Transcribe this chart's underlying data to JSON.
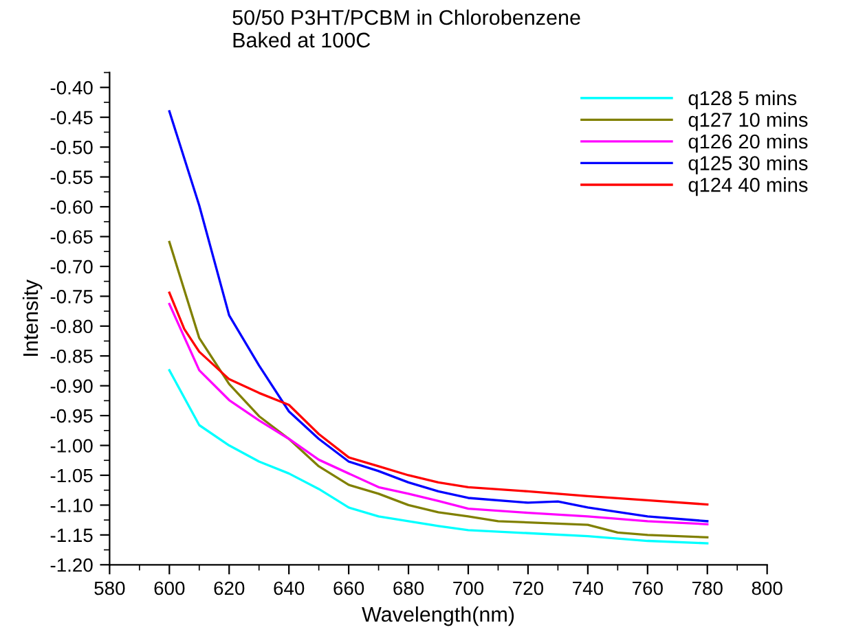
{
  "chart_data": {
    "type": "line",
    "title": "50/50 P3HT/PCBM in Chlorobenzene\nBaked at 100C",
    "xlabel": "Wavelength(nm)",
    "ylabel": "Intensity",
    "xlim": [
      580,
      800
    ],
    "ylim": [
      -1.2,
      -0.375
    ],
    "xticks": [
      580,
      600,
      620,
      640,
      660,
      680,
      700,
      720,
      740,
      760,
      780,
      800
    ],
    "yticks": [
      {
        "value": -1.2,
        "label": "-1.20"
      },
      {
        "value": -1.15,
        "label": "-1.15"
      },
      {
        "value": -1.1,
        "label": "-1.10"
      },
      {
        "value": -1.05,
        "label": "-1.05"
      },
      {
        "value": -1.0,
        "label": "-1.00"
      },
      {
        "value": -0.95,
        "label": "-0.95"
      },
      {
        "value": -0.9,
        "label": "-0.90"
      },
      {
        "value": -0.85,
        "label": "-0.85"
      },
      {
        "value": -0.8,
        "label": "-0.80"
      },
      {
        "value": -0.75,
        "label": "-0.75"
      },
      {
        "value": -0.7,
        "label": "-0.70"
      },
      {
        "value": -0.65,
        "label": "-0.65"
      },
      {
        "value": -0.6,
        "label": "-0.60"
      },
      {
        "value": -0.55,
        "label": "-0.55"
      },
      {
        "value": -0.5,
        "label": "-0.50"
      },
      {
        "value": -0.45,
        "label": "-0.45"
      },
      {
        "value": -0.4,
        "label": "-0.40"
      }
    ],
    "grid": false,
    "legend": "top right",
    "marker": "none",
    "line_style": "solid",
    "series": [
      {
        "name": "q128 5 mins",
        "color": "#00ffff",
        "x": [
          600,
          610,
          620,
          630,
          640,
          650,
          660,
          670,
          680,
          690,
          700,
          720,
          740,
          760,
          780
        ],
        "values": [
          -0.874,
          -0.966,
          -1.0,
          -1.027,
          -1.047,
          -1.073,
          -1.104,
          -1.119,
          -1.127,
          -1.135,
          -1.142,
          -1.147,
          -1.152,
          -1.16,
          -1.164
        ]
      },
      {
        "name": "q127 10 mins",
        "color": "#808000",
        "x": [
          600,
          610,
          620,
          630,
          640,
          650,
          660,
          670,
          680,
          690,
          700,
          710,
          720,
          740,
          750,
          760,
          780
        ],
        "values": [
          -0.659,
          -0.82,
          -0.897,
          -0.951,
          -0.989,
          -1.035,
          -1.066,
          -1.081,
          -1.1,
          -1.112,
          -1.119,
          -1.127,
          -1.129,
          -1.133,
          -1.146,
          -1.15,
          -1.154
        ]
      },
      {
        "name": "q126 20 mins",
        "color": "#ff00ff",
        "x": [
          600,
          610,
          620,
          630,
          640,
          650,
          660,
          670,
          680,
          690,
          700,
          720,
          740,
          760,
          780
        ],
        "values": [
          -0.763,
          -0.874,
          -0.924,
          -0.958,
          -0.989,
          -1.024,
          -1.047,
          -1.07,
          -1.081,
          -1.093,
          -1.106,
          -1.113,
          -1.119,
          -1.127,
          -1.132
        ]
      },
      {
        "name": "q125 30 mins",
        "color": "#0000ff",
        "x": [
          600,
          610,
          620,
          630,
          640,
          650,
          660,
          670,
          680,
          690,
          700,
          720,
          730,
          740,
          760,
          780
        ],
        "values": [
          -0.44,
          -0.598,
          -0.782,
          -0.866,
          -0.943,
          -0.989,
          -1.027,
          -1.043,
          -1.062,
          -1.077,
          -1.088,
          -1.096,
          -1.094,
          -1.104,
          -1.119,
          -1.127
        ]
      },
      {
        "name": "q124 40 mins",
        "color": "#ff0000",
        "x": [
          600,
          605,
          610,
          620,
          630,
          640,
          650,
          660,
          670,
          680,
          690,
          700,
          720,
          740,
          760,
          780
        ],
        "values": [
          -0.744,
          -0.805,
          -0.843,
          -0.889,
          -0.912,
          -0.932,
          -0.981,
          -1.02,
          -1.035,
          -1.05,
          -1.062,
          -1.07,
          -1.077,
          -1.085,
          -1.092,
          -1.099
        ]
      }
    ]
  }
}
